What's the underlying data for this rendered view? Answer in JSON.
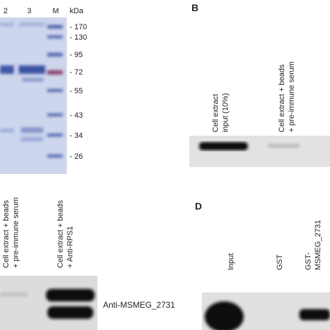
{
  "panel_a": {
    "lanes": [
      "2",
      "3",
      "M"
    ],
    "unit": "kDa",
    "markers": [
      "- 170",
      "- 130",
      "- 95",
      "- 72",
      "- 55",
      "- 43",
      "- 34",
      "- 26"
    ]
  },
  "panel_b": {
    "label": "B",
    "lanes": [
      [
        "Cell extract",
        "input (10%)"
      ],
      [
        "Cell extract + beads",
        "+ pre-immune serum"
      ]
    ]
  },
  "panel_c": {
    "lanes": [
      [
        "Cell extract + beads",
        "+ pre-immune serum"
      ],
      [
        "Cell extract + beads",
        "+ Anti-RPS1"
      ]
    ],
    "antibody": "Anti-MSMEG_2731"
  },
  "panel_d": {
    "label": "D",
    "lanes": [
      [
        "Input"
      ],
      [
        "GST"
      ],
      [
        "GST-",
        "MSMEG_2731"
      ]
    ]
  }
}
